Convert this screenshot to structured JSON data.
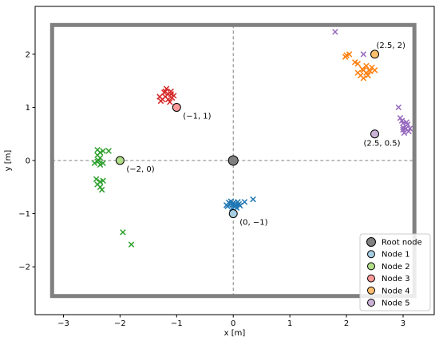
{
  "chart_data": {
    "type": "scatter",
    "title": "",
    "xlabel": "x [m]",
    "ylabel": "y [m]",
    "xlim": [
      -3.5,
      3.55
    ],
    "ylim": [
      -2.9,
      2.9
    ],
    "xticks": [
      -3,
      -2,
      -1,
      0,
      1,
      2,
      3
    ],
    "yticks": [
      -2,
      -1,
      0,
      1,
      2
    ],
    "xtick_labels": [
      "−3",
      "−2",
      "−1",
      "0",
      "1",
      "2",
      "3"
    ],
    "ytick_labels": [
      "−2",
      "−1",
      "0",
      "1",
      "2"
    ],
    "boundary": {
      "x": [
        -3.2,
        3.2
      ],
      "y": [
        -2.55,
        2.55
      ],
      "color": "#808080"
    },
    "reference_lines": {
      "x": 0,
      "y": 0,
      "style": "dashed",
      "color": "#808080"
    },
    "legend_position": "lower-right",
    "nodes": [
      {
        "name": "Root node",
        "x": 0,
        "y": 0,
        "color": "#808080",
        "label": ""
      },
      {
        "name": "Node 1",
        "x": 0,
        "y": -1,
        "color": "#a6cee3",
        "label": "(0, −1)"
      },
      {
        "name": "Node 2",
        "x": -2,
        "y": 0,
        "color": "#b2df8a",
        "label": "(−2, 0)"
      },
      {
        "name": "Node 3",
        "x": -1,
        "y": 1,
        "color": "#fb9a99",
        "label": "(−1, 1)"
      },
      {
        "name": "Node 4",
        "x": 2.5,
        "y": 2,
        "color": "#fdbf6f",
        "label": "(2.5, 2)"
      },
      {
        "name": "Node 5",
        "x": 2.5,
        "y": 0.5,
        "color": "#cab2d6",
        "label": "(2.5, 0.5)"
      }
    ],
    "series": [
      {
        "color": "#1f77b4",
        "points": [
          [
            -0.05,
            -0.82
          ],
          [
            0.0,
            -0.8
          ],
          [
            0.05,
            -0.84
          ],
          [
            -0.1,
            -0.86
          ],
          [
            0.08,
            -0.78
          ],
          [
            -0.02,
            -0.9
          ],
          [
            0.1,
            -0.82
          ],
          [
            -0.08,
            -0.79
          ],
          [
            0.03,
            -0.87
          ],
          [
            0.0,
            -0.83
          ],
          [
            -0.04,
            -0.77
          ],
          [
            0.06,
            -0.89
          ],
          [
            0.12,
            -0.85
          ],
          [
            -0.12,
            -0.84
          ],
          [
            0.2,
            -0.78
          ],
          [
            0.35,
            -0.73
          ]
        ]
      },
      {
        "color": "#2ca02c",
        "points": [
          [
            -2.4,
            0.2
          ],
          [
            -2.35,
            0.15
          ],
          [
            -2.3,
            0.18
          ],
          [
            -2.2,
            0.18
          ],
          [
            -2.4,
            0.1
          ],
          [
            -2.35,
            0.05
          ],
          [
            -2.45,
            -0.05
          ],
          [
            -2.4,
            -0.02
          ],
          [
            -2.35,
            -0.08
          ],
          [
            -2.3,
            -0.05
          ],
          [
            -2.38,
            0.0
          ],
          [
            -2.42,
            -0.35
          ],
          [
            -2.35,
            -0.4
          ],
          [
            -2.3,
            -0.38
          ],
          [
            -2.4,
            -0.45
          ],
          [
            -2.35,
            -0.5
          ],
          [
            -2.32,
            -0.55
          ],
          [
            -1.95,
            -1.35
          ],
          [
            -1.8,
            -1.58
          ]
        ]
      },
      {
        "color": "#d62728",
        "points": [
          [
            -1.2,
            1.2
          ],
          [
            -1.15,
            1.25
          ],
          [
            -1.1,
            1.3
          ],
          [
            -1.25,
            1.15
          ],
          [
            -1.3,
            1.2
          ],
          [
            -1.05,
            1.22
          ],
          [
            -1.18,
            1.35
          ],
          [
            -1.12,
            1.1
          ],
          [
            -1.22,
            1.28
          ],
          [
            -1.08,
            1.18
          ],
          [
            -1.28,
            1.12
          ],
          [
            -1.15,
            1.15
          ],
          [
            -1.2,
            1.3
          ],
          [
            -1.1,
            1.25
          ]
        ]
      },
      {
        "color": "#ff7f0e",
        "points": [
          [
            2.3,
            1.7
          ],
          [
            2.35,
            1.65
          ],
          [
            2.4,
            1.7
          ],
          [
            2.25,
            1.6
          ],
          [
            2.3,
            1.55
          ],
          [
            2.45,
            1.75
          ],
          [
            2.28,
            1.72
          ],
          [
            2.38,
            1.6
          ],
          [
            2.42,
            1.68
          ],
          [
            2.2,
            1.65
          ],
          [
            2.35,
            1.78
          ],
          [
            2.5,
            1.7
          ],
          [
            2.0,
            1.98
          ],
          [
            2.05,
            2.0
          ],
          [
            1.98,
            1.95
          ],
          [
            2.15,
            1.85
          ],
          [
            2.2,
            1.82
          ]
        ]
      },
      {
        "color": "#9467bd",
        "points": [
          [
            3.0,
            0.7
          ],
          [
            3.05,
            0.6
          ],
          [
            3.1,
            0.55
          ],
          [
            3.0,
            0.62
          ],
          [
            3.08,
            0.68
          ],
          [
            3.02,
            0.52
          ],
          [
            2.98,
            0.75
          ],
          [
            3.12,
            0.6
          ],
          [
            3.06,
            0.72
          ],
          [
            3.0,
            0.58
          ],
          [
            2.95,
            0.8
          ],
          [
            2.92,
            1.0
          ],
          [
            1.8,
            2.42
          ],
          [
            2.3,
            2.0
          ]
        ]
      }
    ]
  }
}
